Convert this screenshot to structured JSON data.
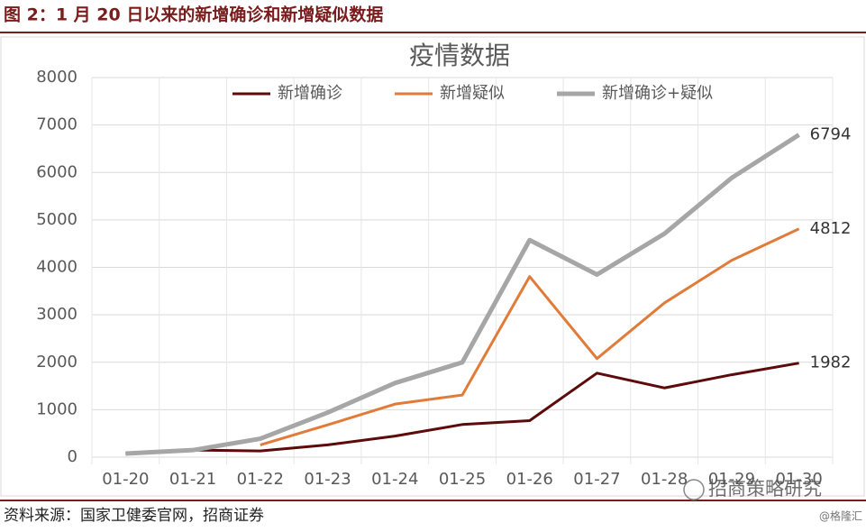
{
  "header": {
    "title": "图 2：1 月 20 日以来的新增确诊和新增疑似数据"
  },
  "chart_data": {
    "type": "line",
    "title": "疫情数据",
    "categories": [
      "01-20",
      "01-21",
      "01-22",
      "01-23",
      "01-24",
      "01-25",
      "01-26",
      "01-27",
      "01-28",
      "01-29",
      "01-30"
    ],
    "series": [
      {
        "name": "新增确诊",
        "color": "#5c0a0a",
        "values": [
          77,
          149,
          131,
          259,
          444,
          688,
          769,
          1771,
          1459,
          1737,
          1982
        ]
      },
      {
        "name": "新增疑似",
        "color": "#e07b39",
        "values": [
          null,
          null,
          257,
          680,
          1118,
          1309,
          3806,
          2077,
          3248,
          4148,
          4812
        ]
      },
      {
        "name": "新增确诊+疑似",
        "color": "#a6a6a6",
        "values": [
          77,
          149,
          388,
          939,
          1562,
          1997,
          4575,
          3848,
          4707,
          5885,
          6794
        ]
      }
    ],
    "ylim": [
      0,
      8000
    ],
    "yticks": [
      0,
      1000,
      2000,
      3000,
      4000,
      5000,
      6000,
      7000,
      8000
    ],
    "grid": true,
    "legend": "top"
  },
  "footer": {
    "source": "资料来源：国家卫健委官网，招商证券",
    "watermark": "招商策略研究",
    "credit": "@格隆汇"
  }
}
